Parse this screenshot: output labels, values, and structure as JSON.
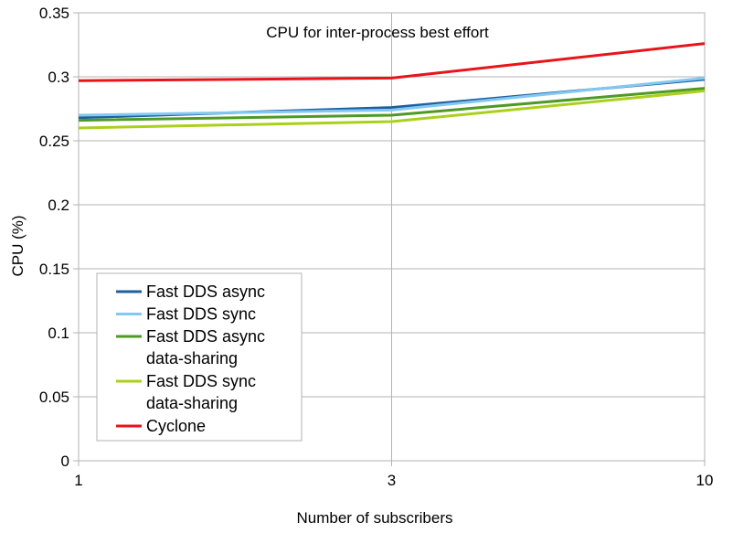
{
  "chart_data": {
    "type": "line",
    "title": "CPU for inter-process best effort",
    "xlabel": "Number of subscribers",
    "ylabel": "CPU (%)",
    "x": [
      "1",
      "3",
      "10"
    ],
    "ylim": [
      0,
      0.35
    ],
    "yticks": [
      "0",
      "0.05",
      "0.1",
      "0.15",
      "0.2",
      "0.25",
      "0.3",
      "0.35"
    ],
    "grid": true,
    "legend_position": "bottom-left",
    "series": [
      {
        "name": "Fast DDS async",
        "legend_lines": [
          "Fast DDS async"
        ],
        "color": "#1f5f9f",
        "values": [
          0.268,
          0.276,
          0.298
        ]
      },
      {
        "name": "Fast DDS sync",
        "legend_lines": [
          "Fast DDS sync"
        ],
        "color": "#83c8f0",
        "values": [
          0.27,
          0.274,
          0.299
        ]
      },
      {
        "name": "Fast DDS async data-sharing",
        "legend_lines": [
          "Fast DDS async",
          "data-sharing"
        ],
        "color": "#4f9a25",
        "values": [
          0.266,
          0.27,
          0.291
        ]
      },
      {
        "name": "Fast DDS sync data-sharing",
        "legend_lines": [
          "Fast DDS sync",
          "data-sharing"
        ],
        "color": "#aad01c",
        "values": [
          0.26,
          0.265,
          0.289
        ]
      },
      {
        "name": "Cyclone",
        "legend_lines": [
          "Cyclone"
        ],
        "color": "#e8141a",
        "values": [
          0.297,
          0.299,
          0.326
        ]
      }
    ]
  }
}
